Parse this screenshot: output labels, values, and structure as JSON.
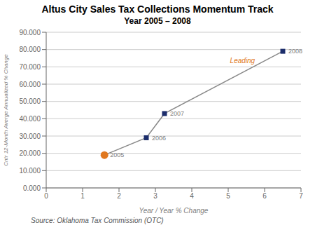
{
  "chart_data": {
    "type": "line",
    "title": "Altus City Sales Tax Collections Momentum Track",
    "subtitle": "Year 2005 – 2008",
    "x_label": "Year / Year % Change",
    "y_label": "Cntr 12-Month Averge Annualized % Change",
    "source": "Source: Oklahoma Tax Commission (OTC)",
    "x": [
      1.6,
      2.75,
      3.25,
      6.5
    ],
    "values": [
      19000,
      29000,
      43000,
      79000
    ],
    "point_labels": [
      "2005",
      "2006",
      "2007",
      "2008"
    ],
    "color": "#888888",
    "colors": [
      "#e07820",
      "#1c2d6b",
      "#1c2d6b",
      "#1c2d6b"
    ],
    "markers": [
      "circle",
      "square",
      "square",
      "square"
    ],
    "annotations": [
      {
        "text": "Leading",
        "x": 5.05,
        "y": 72000,
        "color": "#e07820"
      }
    ],
    "xlim": [
      0,
      7
    ],
    "ylim": [
      0,
      90000
    ],
    "xticks": [
      0,
      1,
      2,
      3,
      4,
      5,
      6,
      7
    ],
    "yticks": [
      {
        "value": 0,
        "label": "0.000"
      },
      {
        "value": 10000,
        "label": "10.000"
      },
      {
        "value": 20000,
        "label": "20.000"
      },
      {
        "value": 30000,
        "label": "30.000"
      },
      {
        "value": 40000,
        "label": "40.000"
      },
      {
        "value": 50000,
        "label": "50.000"
      },
      {
        "value": 60000,
        "label": "60.000"
      },
      {
        "value": 70000,
        "label": "70.000"
      },
      {
        "value": 80000,
        "label": "80.000"
      },
      {
        "value": 90000,
        "label": "90.000"
      }
    ],
    "grid": "y"
  }
}
